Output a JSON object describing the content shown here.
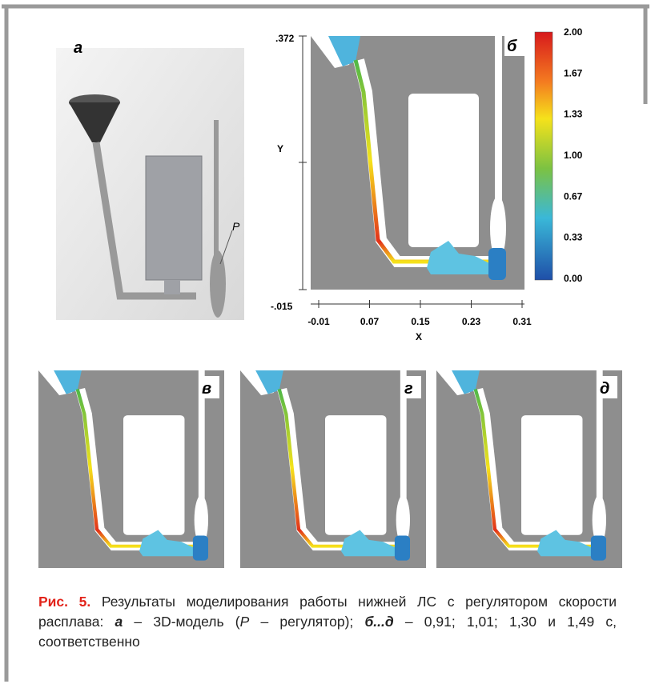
{
  "panels": {
    "a": {
      "label": "а",
      "marker": "P"
    },
    "b": {
      "label": "б",
      "y_top": ".372",
      "y_bottom": "-.015",
      "y_axis": "Y",
      "x_axis": "X",
      "x_ticks": [
        "-0.01",
        "0.07",
        "0.15",
        "0.23",
        "0.31"
      ],
      "colorbar_ticks": [
        "2.00",
        "1.67",
        "1.33",
        "1.00",
        "0.67",
        "0.33",
        "0.00"
      ]
    },
    "v": {
      "label": "в"
    },
    "g": {
      "label": "г"
    },
    "d": {
      "label": "д"
    }
  },
  "caption": {
    "label": "Рис. 5.",
    "parts": [
      " Результаты моделирования работы нижней ЛС с регулятором скорости расплава: ",
      "а",
      " – 3D-модель (",
      "P",
      " – регулятор); ",
      "б...д",
      " – 0,91; 1,01; 1,30 и 1,49 с, соответственно"
    ]
  }
}
